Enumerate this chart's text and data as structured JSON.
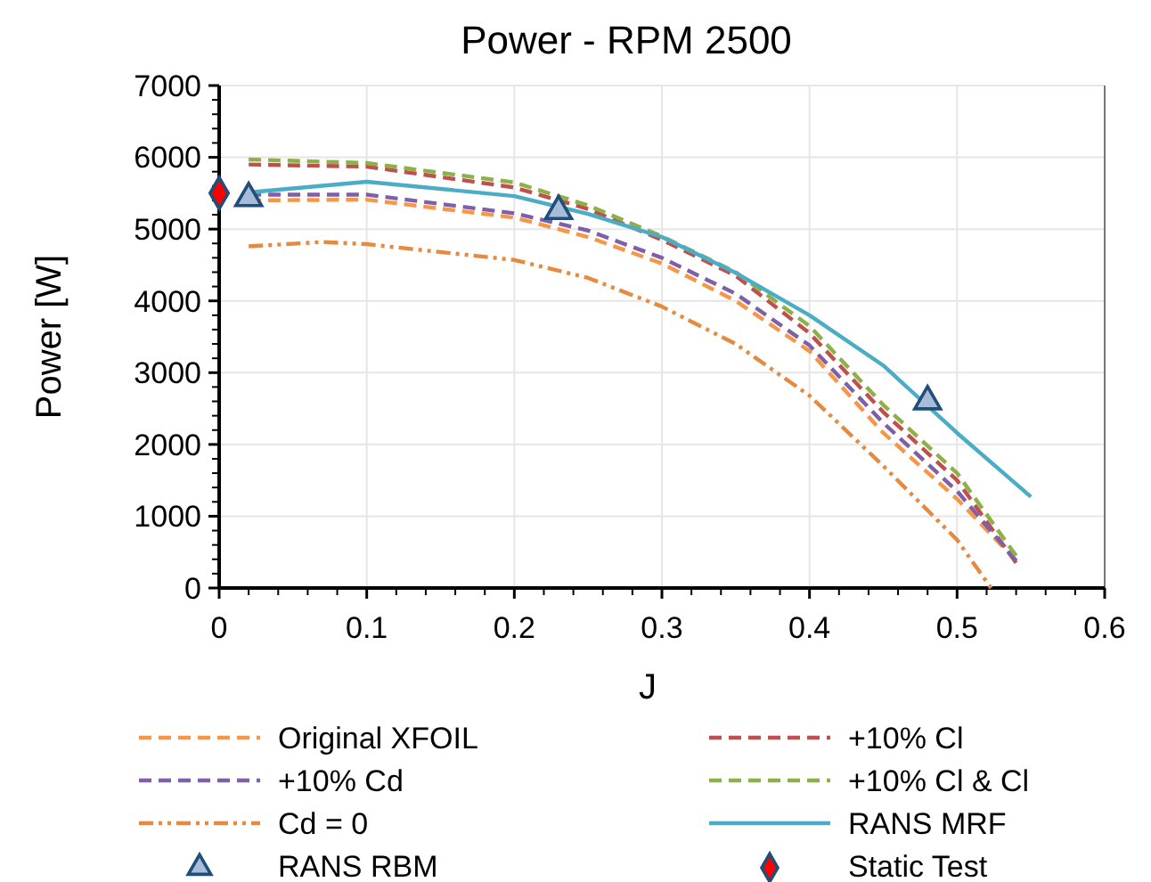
{
  "chart_data": {
    "type": "line",
    "title": "Power - RPM 2500",
    "xlabel": "J",
    "ylabel": "Power [W]",
    "xlim": [
      0,
      0.6
    ],
    "xticks": [
      0,
      0.1,
      0.2,
      0.3,
      0.4,
      0.5,
      0.6
    ],
    "ylim": [
      0,
      7000
    ],
    "yticks": [
      0,
      1000,
      2000,
      3000,
      4000,
      5000,
      6000,
      7000
    ],
    "grid": true,
    "legend": "bottom",
    "series": [
      {
        "name": "Original XFOIL",
        "color": "#f79646",
        "line_style": "dashed",
        "x": [
          0.02,
          0.1,
          0.2,
          0.25,
          0.3,
          0.35,
          0.4,
          0.45,
          0.5,
          0.54
        ],
        "values": [
          5400,
          5410,
          5160,
          4890,
          4520,
          4000,
          3300,
          2160,
          1240,
          380
        ]
      },
      {
        "name": "+10% Cl",
        "color": "#c0504d",
        "line_style": "dashed",
        "x": [
          0.02,
          0.1,
          0.2,
          0.25,
          0.3,
          0.35,
          0.4,
          0.45,
          0.5,
          0.54
        ],
        "values": [
          5900,
          5870,
          5580,
          5280,
          4850,
          4350,
          3550,
          2450,
          1500,
          350
        ]
      },
      {
        "name": "+10% Cd",
        "color": "#7f5fa8",
        "line_style": "dashed",
        "x": [
          0.02,
          0.1,
          0.2,
          0.25,
          0.3,
          0.35,
          0.4,
          0.45,
          0.5,
          0.54
        ],
        "values": [
          5480,
          5480,
          5220,
          4980,
          4600,
          4100,
          3380,
          2300,
          1350,
          380
        ]
      },
      {
        "name": "+10% Cl & Cl",
        "color": "#8db049",
        "line_style": "dashed",
        "x": [
          0.02,
          0.1,
          0.2,
          0.25,
          0.3,
          0.35,
          0.4,
          0.45,
          0.5,
          0.54
        ],
        "values": [
          5970,
          5920,
          5650,
          5330,
          4900,
          4400,
          3650,
          2550,
          1600,
          450
        ]
      },
      {
        "name": "Cd = 0",
        "color": "#e58a3e",
        "line_style": "dotted",
        "x": [
          0.02,
          0.07,
          0.1,
          0.2,
          0.25,
          0.3,
          0.35,
          0.4,
          0.45,
          0.5,
          0.523
        ],
        "values": [
          4760,
          4820,
          4790,
          4570,
          4320,
          3920,
          3400,
          2680,
          1700,
          670,
          0
        ]
      },
      {
        "name": "RANS MRF",
        "color": "#4bacc6",
        "line_style": "solid",
        "x": [
          0.02,
          0.1,
          0.2,
          0.25,
          0.3,
          0.35,
          0.4,
          0.45,
          0.5,
          0.55
        ],
        "values": [
          5510,
          5660,
          5460,
          5210,
          4890,
          4390,
          3800,
          3100,
          2160,
          1270
        ]
      },
      {
        "name": "RANS RBM",
        "type": "scatter",
        "color": "#a6bcd9",
        "marker": "triangle",
        "x": [
          0.02,
          0.23,
          0.48
        ],
        "values": [
          5430,
          5250,
          2600
        ]
      },
      {
        "name": "Static Test",
        "type": "scatter",
        "color": "#ff0000",
        "marker": "diamond",
        "x": [
          0
        ],
        "values": [
          5500
        ]
      }
    ]
  }
}
